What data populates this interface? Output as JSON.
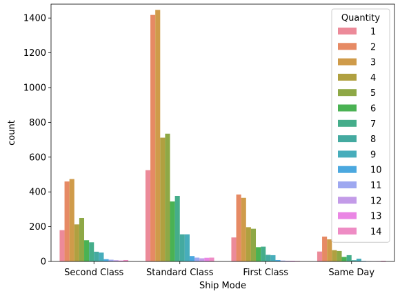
{
  "chart_data": {
    "type": "bar",
    "title": "",
    "xlabel": "Ship Mode",
    "ylabel": "count",
    "ylim": [
      0,
      1480
    ],
    "yticks": [
      0,
      200,
      400,
      600,
      800,
      1000,
      1200,
      1400
    ],
    "categories": [
      "Second Class",
      "Standard Class",
      "First Class",
      "Same Day"
    ],
    "grid": false,
    "legend": {
      "title": "Quantity",
      "position": "top-right"
    },
    "series": [
      {
        "name": "1",
        "color": "#ec8a99",
        "values": [
          180,
          525,
          138,
          57
        ]
      },
      {
        "name": "2",
        "color": "#e68a64",
        "values": [
          460,
          1418,
          385,
          143
        ]
      },
      {
        "name": "3",
        "color": "#cf9b4a",
        "values": [
          474,
          1447,
          366,
          127
        ]
      },
      {
        "name": "4",
        "color": "#b0a040",
        "values": [
          213,
          712,
          197,
          65
        ]
      },
      {
        "name": "5",
        "color": "#8ea846",
        "values": [
          250,
          735,
          188,
          60
        ]
      },
      {
        "name": "6",
        "color": "#4ab253",
        "values": [
          122,
          345,
          82,
          26
        ]
      },
      {
        "name": "7",
        "color": "#45ad8a",
        "values": [
          110,
          377,
          85,
          36
        ]
      },
      {
        "name": "8",
        "color": "#44aaa0",
        "values": [
          56,
          156,
          38,
          7
        ]
      },
      {
        "name": "9",
        "color": "#47adbb",
        "values": [
          51,
          156,
          36,
          16
        ]
      },
      {
        "name": "10",
        "color": "#4ba8df",
        "values": [
          13,
          31,
          8,
          3
        ]
      },
      {
        "name": "11",
        "color": "#9ea8f0",
        "values": [
          10,
          22,
          5,
          2
        ]
      },
      {
        "name": "12",
        "color": "#c39be8",
        "values": [
          7,
          18,
          4,
          1
        ]
      },
      {
        "name": "13",
        "color": "#ea86e4",
        "values": [
          5,
          21,
          4,
          2
        ]
      },
      {
        "name": "14",
        "color": "#ee8cc4",
        "values": [
          8,
          22,
          3,
          4
        ]
      }
    ]
  }
}
